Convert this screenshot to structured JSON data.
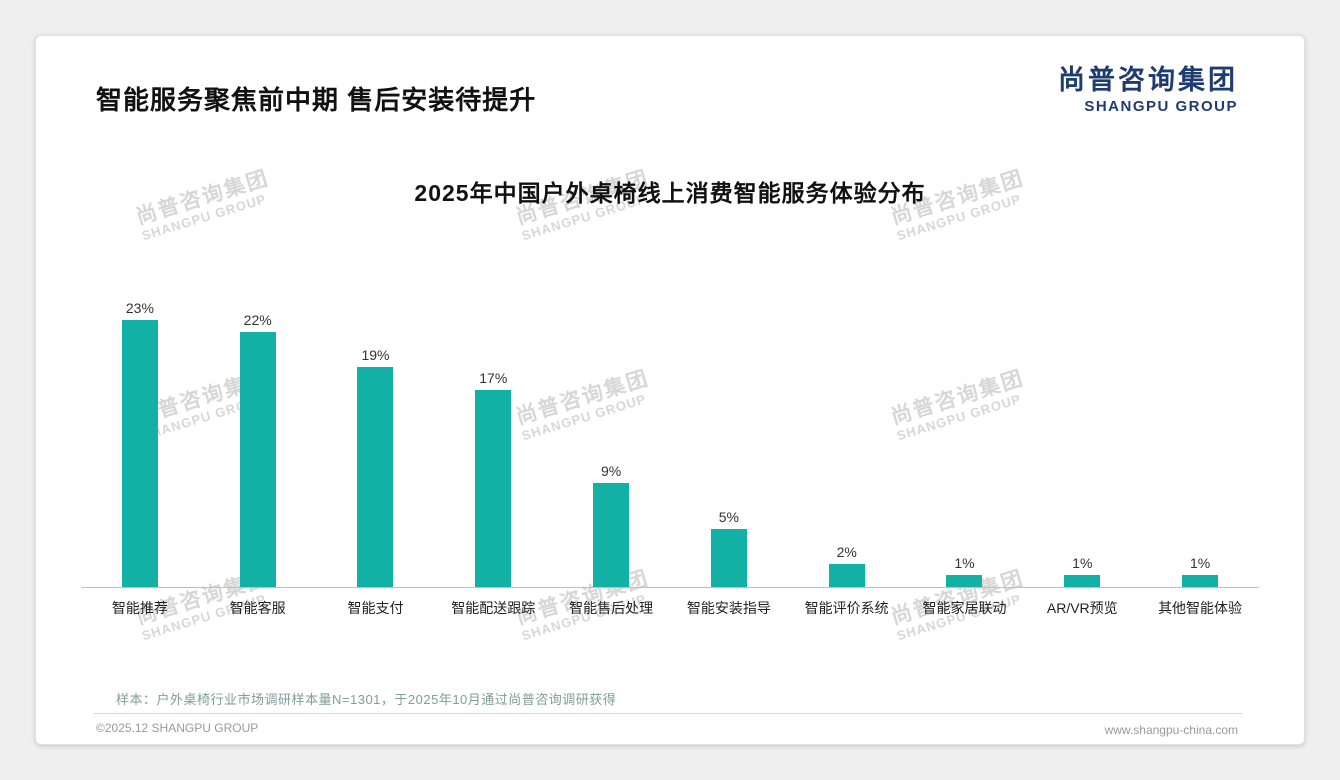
{
  "page": {
    "title": "智能服务聚焦前中期 售后安装待提升",
    "footnote": "样本：户外桌椅行业市场调研样本量N=1301，于2025年10月通过尚普咨询调研获得",
    "copyright": "©2025.12 SHANGPU GROUP",
    "website": "www.shangpu-china.com"
  },
  "logo": {
    "cn": "尚普咨询集团",
    "en": "SHANGPU GROUP",
    "color": "#1e3c6f"
  },
  "watermark": {
    "cn": "尚普咨询集团",
    "en": "SHANGPU GROUP"
  },
  "chart_data": {
    "type": "bar",
    "title": "2025年中国户外桌椅线上消费智能服务体验分布",
    "categories": [
      "智能推荐",
      "智能客服",
      "智能支付",
      "智能配送跟踪",
      "智能售后处理",
      "智能安装指导",
      "智能评价系统",
      "智能家居联动",
      "AR/VR预览",
      "其他智能体验"
    ],
    "values": [
      23,
      22,
      19,
      17,
      9,
      5,
      2,
      1,
      1,
      1
    ],
    "value_labels": [
      "23%",
      "22%",
      "19%",
      "17%",
      "9%",
      "5%",
      "2%",
      "1%",
      "1%",
      "1%"
    ],
    "bar_color": "#13b1a5",
    "xlabel": "",
    "ylabel": "",
    "ylim": [
      0,
      25
    ],
    "grid": false,
    "legend": "none"
  }
}
